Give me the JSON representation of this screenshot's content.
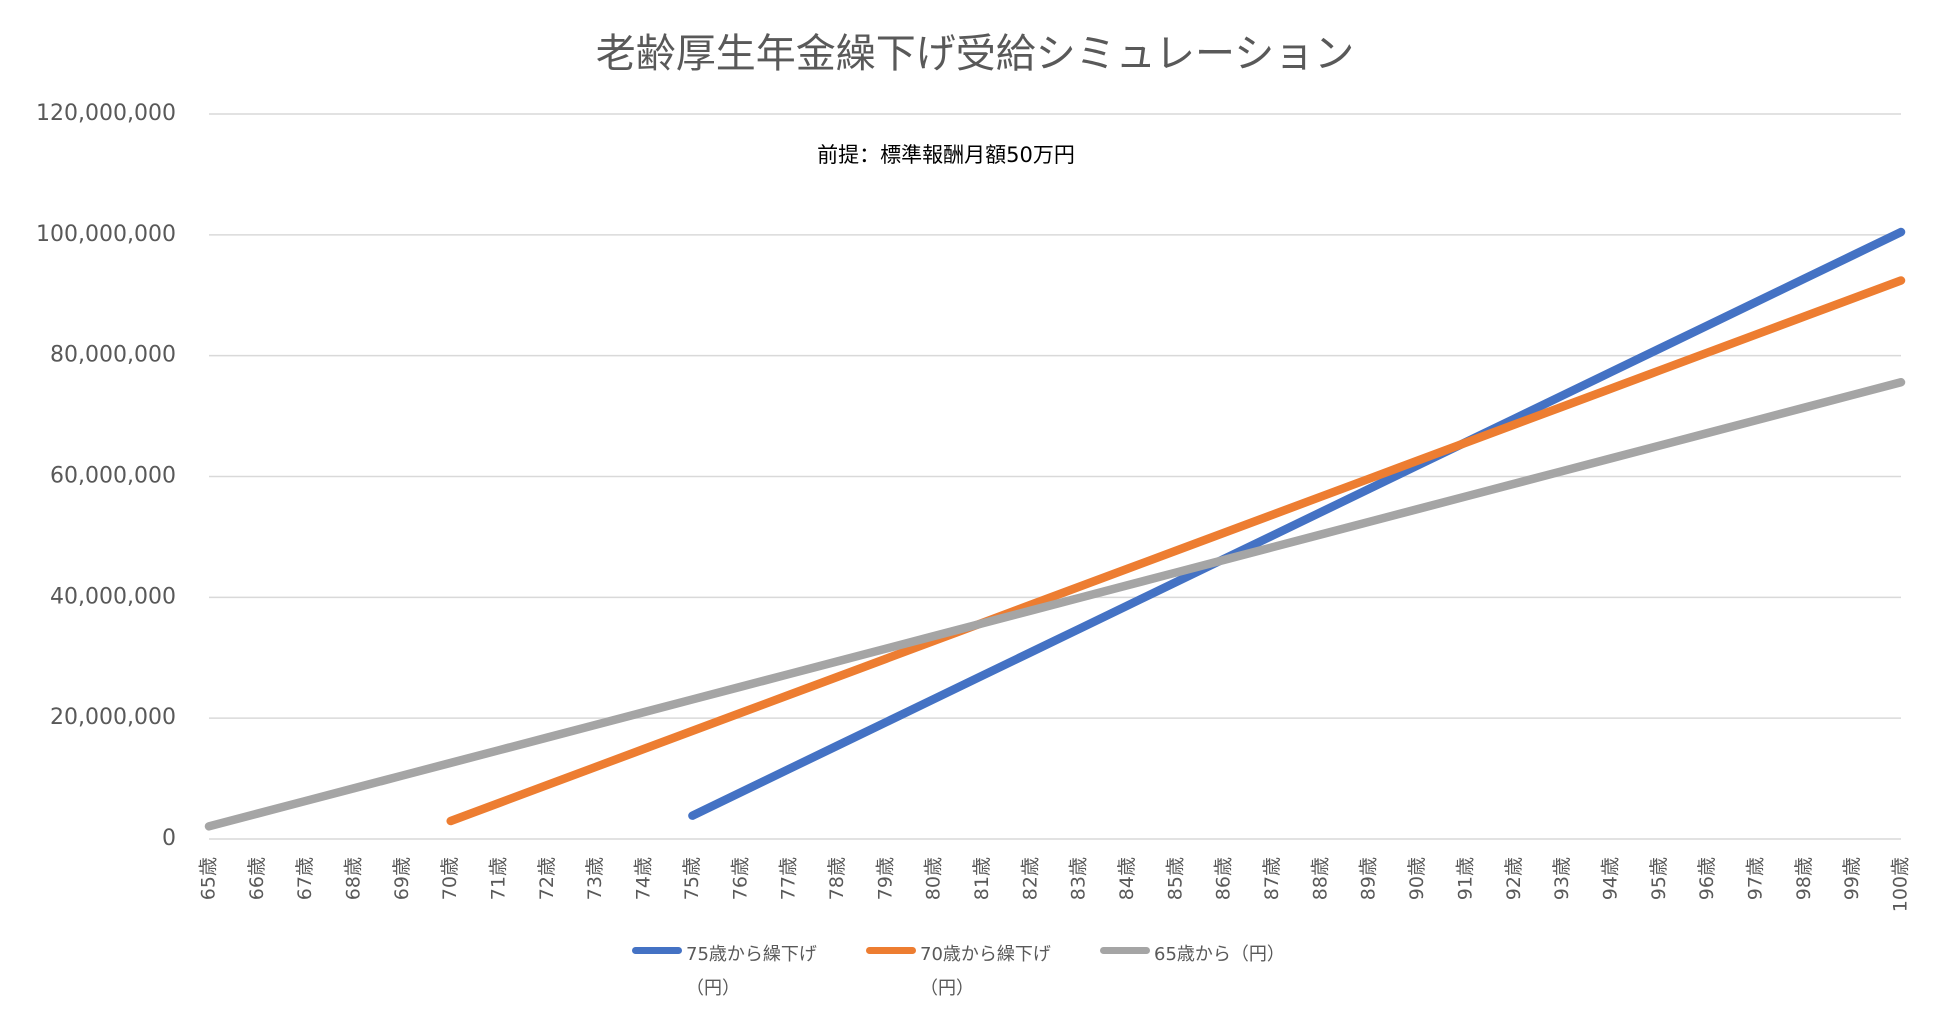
{
  "chart_data": {
    "type": "line",
    "title": "老齢厚生年金繰下げ受給シミュレーション",
    "annotation": "前提：標準報酬月額50万円",
    "categories": [
      "65歳",
      "66歳",
      "67歳",
      "68歳",
      "69歳",
      "70歳",
      "71歳",
      "72歳",
      "73歳",
      "74歳",
      "75歳",
      "76歳",
      "77歳",
      "78歳",
      "79歳",
      "80歳",
      "81歳",
      "82歳",
      "83歳",
      "84歳",
      "85歳",
      "86歳",
      "87歳",
      "88歳",
      "89歳",
      "90歳",
      "91歳",
      "92歳",
      "93歳",
      "94歳",
      "95歳",
      "96歳",
      "97歳",
      "98歳",
      "99歳",
      "100歳"
    ],
    "series": [
      {
        "name": "75歳から繰下げ（円）",
        "color": "#4472c4",
        "values": [
          null,
          null,
          null,
          null,
          null,
          null,
          null,
          null,
          null,
          null,
          3864000,
          7728000,
          11592000,
          15456000,
          19320000,
          23184000,
          27048000,
          30912000,
          34776000,
          38640000,
          42504000,
          46368000,
          50232000,
          54096000,
          57960000,
          61824000,
          65688000,
          69552000,
          73416000,
          77280000,
          81144000,
          85008000,
          88872000,
          92736000,
          96600000,
          100464000
        ]
      },
      {
        "name": "70歳から繰下げ（円）",
        "color": "#ed7d31",
        "values": [
          null,
          null,
          null,
          null,
          null,
          2982000,
          5964000,
          8946000,
          11928000,
          14910000,
          17892000,
          20874000,
          23856000,
          26838000,
          29820000,
          32802000,
          35784000,
          38766000,
          41748000,
          44730000,
          47712000,
          50694000,
          53676000,
          56658000,
          59640000,
          62622000,
          65604000,
          68586000,
          71568000,
          74550000,
          77532000,
          80514000,
          83496000,
          86478000,
          89460000,
          92442000
        ]
      },
      {
        "name": "65歳から（円）",
        "color": "#a5a5a5",
        "values": [
          2100000,
          4200000,
          6300000,
          8400000,
          10500000,
          12600000,
          14700000,
          16800000,
          18900000,
          21000000,
          23100000,
          25200000,
          27300000,
          29400000,
          31500000,
          33600000,
          35700000,
          37800000,
          39900000,
          42000000,
          44100000,
          46200000,
          48300000,
          50400000,
          52500000,
          54600000,
          56700000,
          58800000,
          60900000,
          63000000,
          65100000,
          67200000,
          69300000,
          71400000,
          73500000,
          75600000
        ]
      }
    ],
    "ylim": [
      0,
      120000000
    ],
    "yticks": [
      {
        "value": 0,
        "label": "0"
      },
      {
        "value": 20000000,
        "label": "20,000,000"
      },
      {
        "value": 40000000,
        "label": "40,000,000"
      },
      {
        "value": 60000000,
        "label": "60,000,000"
      },
      {
        "value": 80000000,
        "label": "80,000,000"
      },
      {
        "value": 100000000,
        "label": "100,000,000"
      },
      {
        "value": 120000000,
        "label": "120,000,000"
      }
    ],
    "grid": true,
    "legend": "bottom"
  }
}
